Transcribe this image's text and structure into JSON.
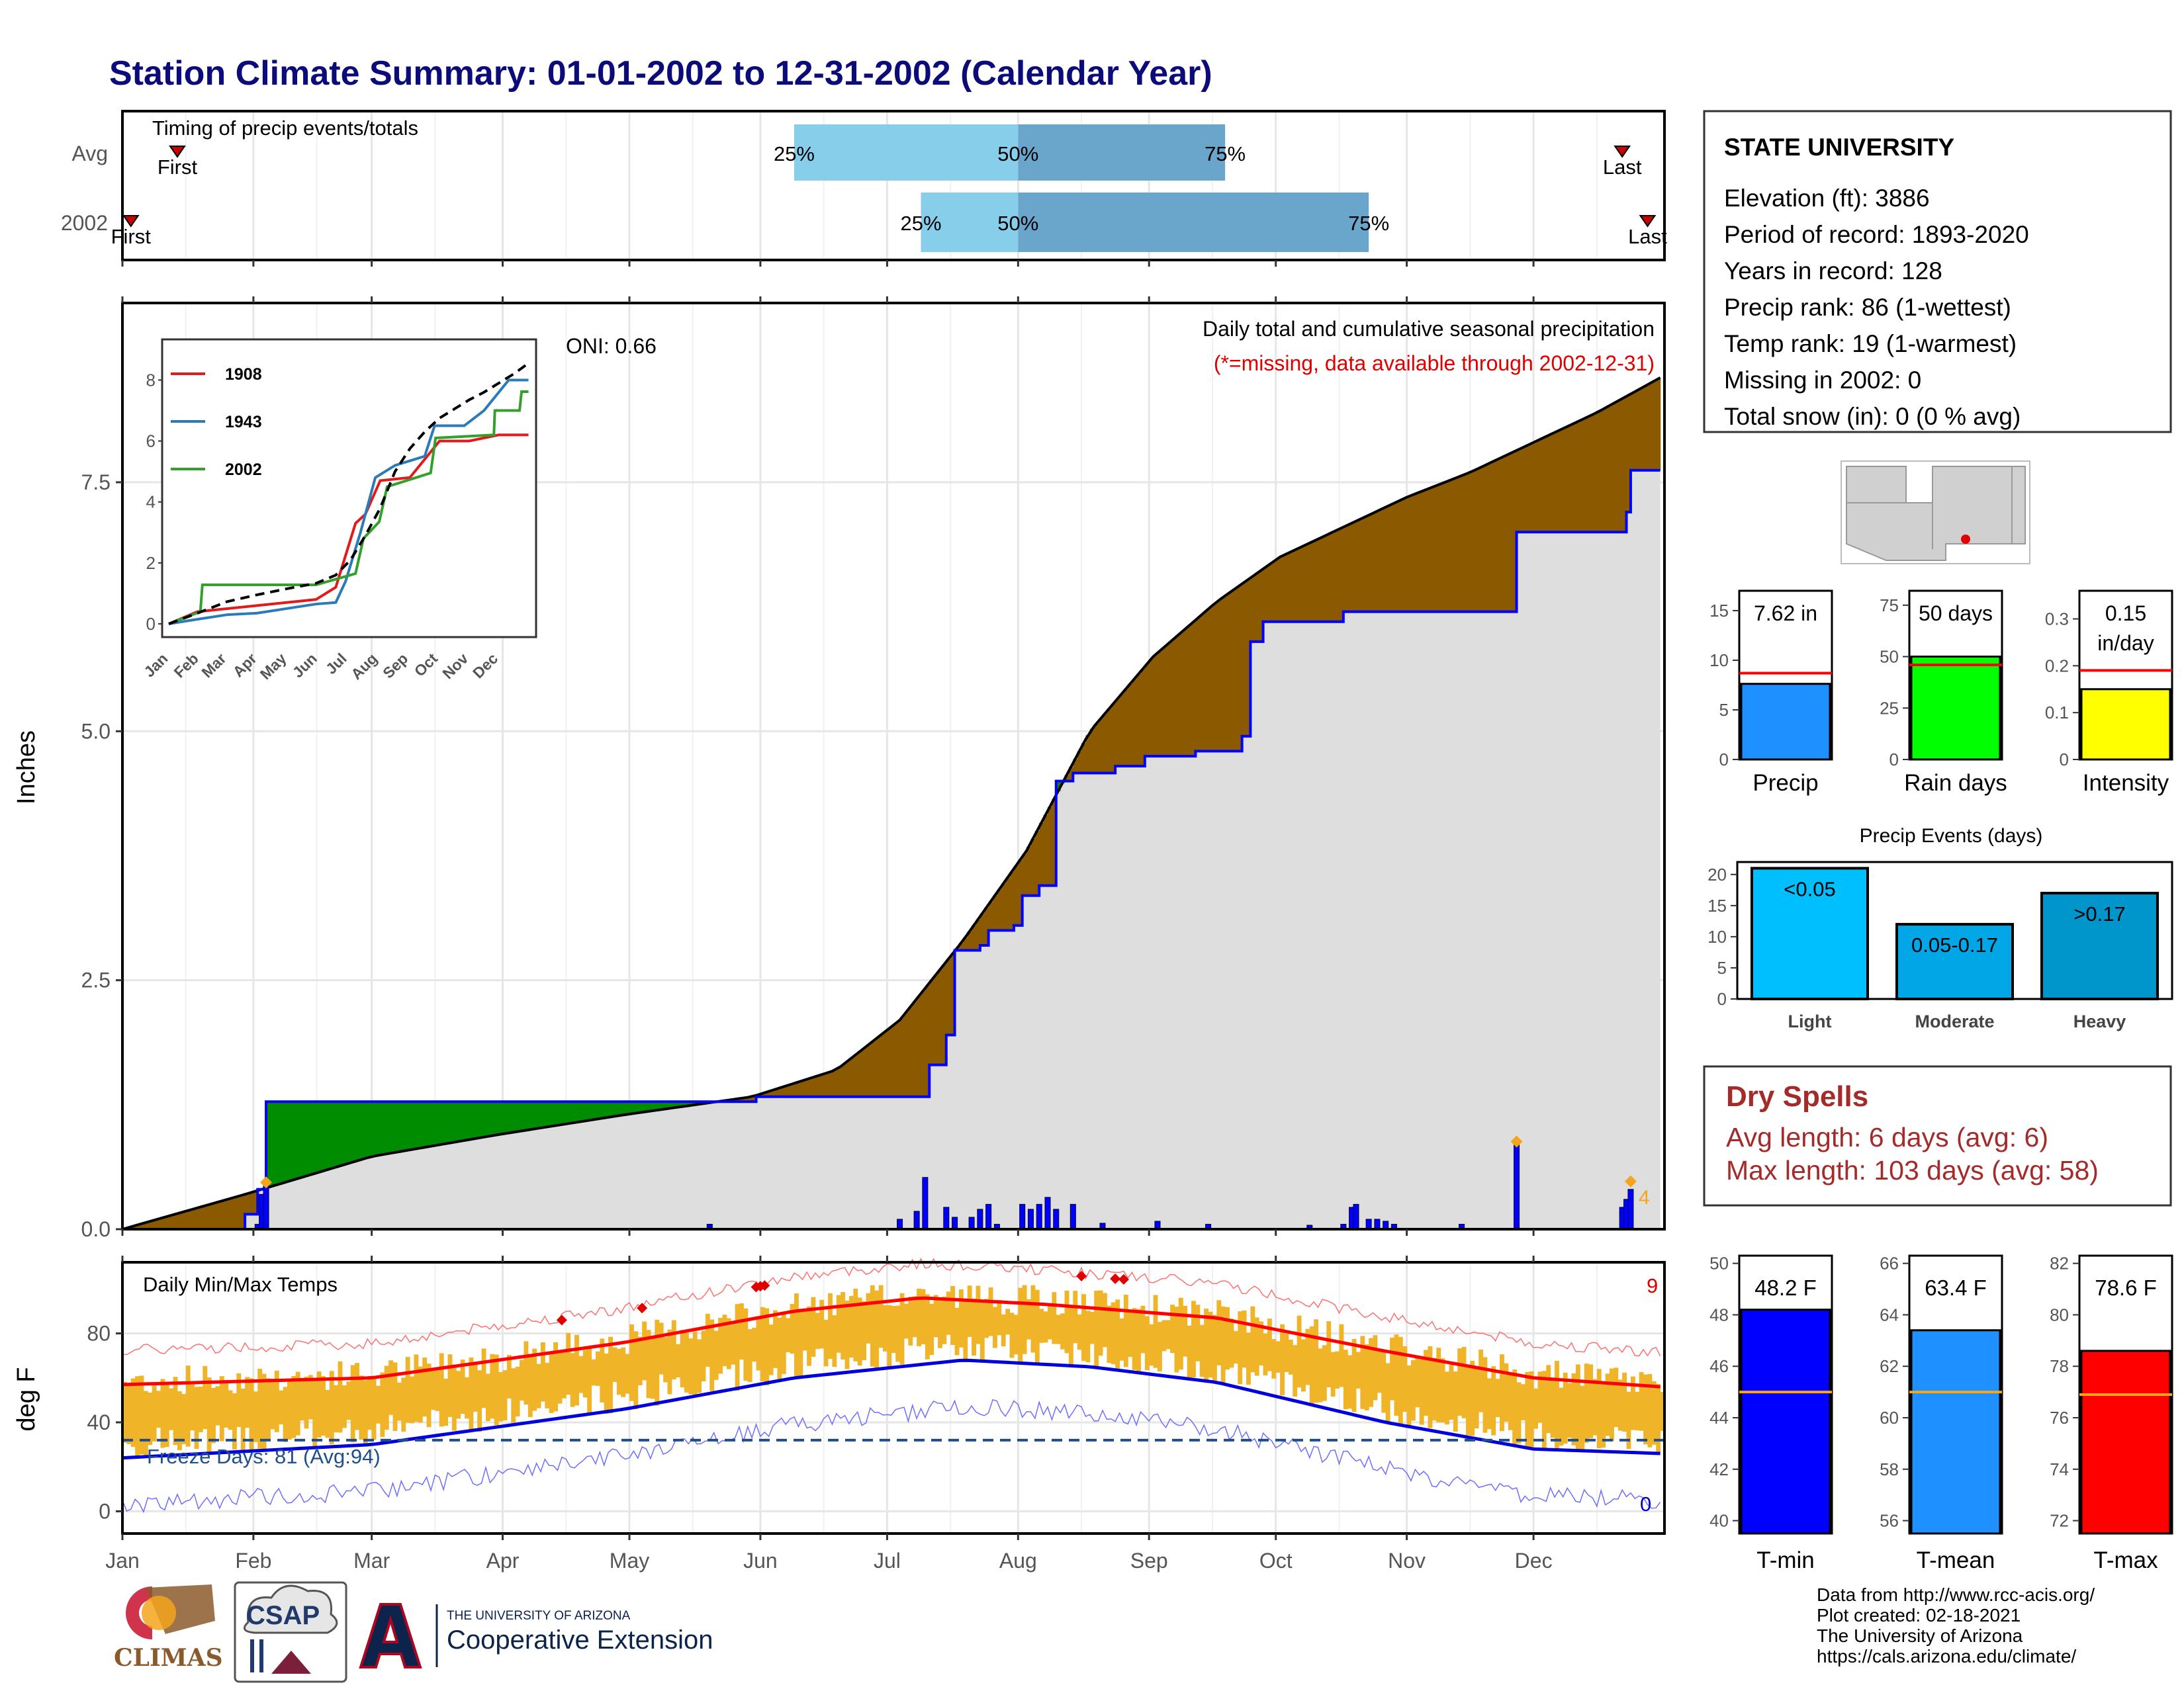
{
  "title": "Station Climate Summary: 01-01-2002 to 12-31-2002 (Calendar Year)",
  "timing": {
    "label": "Timing of precip events/totals",
    "rows": [
      {
        "name": "Avg",
        "first_label": "First",
        "last_label": "Last",
        "q25": "25%",
        "q50": "50%",
        "q75": "75%",
        "first_day": 14,
        "last_day": 356,
        "p25_day": 160,
        "p50_day": 213,
        "p75_day": 262
      },
      {
        "name": "2002",
        "first_label": "First",
        "last_label": "Last",
        "q25": "25%",
        "q50": "50%",
        "q75": "75%",
        "first_day": 3,
        "last_day": 362,
        "p25_day": 190,
        "p50_day": 213,
        "p75_day": 296
      }
    ]
  },
  "precip_panel": {
    "ylabel": "Inches",
    "title": "Daily total and cumulative seasonal precipitation",
    "subtitle": "(*=missing, data available through 2002-12-31)",
    "oni": "ONI: 0.66",
    "corner_count": "4",
    "inset": {
      "legend": [
        "1908",
        "1943",
        "2002"
      ],
      "legend_colors": [
        "#e31a1c",
        "#2b7bb9",
        "#33a02c"
      ],
      "yticks": [
        "0",
        "2",
        "4",
        "6",
        "8"
      ],
      "months": [
        "Jan",
        "Feb",
        "Mar",
        "Apr",
        "May",
        "Jun",
        "Jul",
        "Aug",
        "Sep",
        "Oct",
        "Nov",
        "Dec"
      ]
    }
  },
  "temp_panel": {
    "ylabel": "deg F",
    "title": "Daily Min/Max Temps",
    "freeze_text": "Freeze Days: 81 (Avg:94)",
    "record_high_count": "9",
    "record_low_count": "0",
    "yticks": [
      "0",
      "40",
      "80"
    ]
  },
  "months": [
    "Jan",
    "Feb",
    "Mar",
    "Apr",
    "May",
    "Jun",
    "Jul",
    "Aug",
    "Sep",
    "Oct",
    "Nov",
    "Dec"
  ],
  "station": {
    "name": "STATE UNIVERSITY",
    "lines": [
      "Elevation (ft): 3886",
      "Period of record: 1893-2020",
      "Years in record: 128",
      "Precip rank: 86 (1-wettest)",
      "Temp rank: 19 (1-warmest)",
      "Missing in 2002: 0",
      "Total snow (in): 0 (0 % avg)"
    ]
  },
  "summary_bars": [
    {
      "label": "Precip",
      "value_text": "7.62 in",
      "value": 7.62,
      "avg": 8.7,
      "ymax": 17,
      "yticks": [
        0,
        5,
        10,
        15
      ],
      "color": "#1e90ff"
    },
    {
      "label": "Rain days",
      "value_text": "50 days",
      "value": 50,
      "avg": 46,
      "ymax": 82,
      "yticks": [
        0,
        25,
        50,
        75
      ],
      "color": "#00ff00"
    },
    {
      "label": "Intensity",
      "value_text": "0.15 in/day",
      "value": 0.15,
      "avg": 0.19,
      "ymax": 0.36,
      "yticks": [
        0.0,
        0.1,
        0.2,
        0.3
      ],
      "color": "#ffff00"
    }
  ],
  "precip_events": {
    "title": "Precip Events (days)",
    "categories": [
      "Light",
      "Moderate",
      "Heavy"
    ],
    "labels": [
      "<0.05",
      "0.05-0.17",
      ">0.17"
    ],
    "values": [
      21,
      12,
      17
    ],
    "colors": [
      "#00bfff",
      "#00a6e6",
      "#0096cc"
    ],
    "yticks": [
      0,
      5,
      10,
      15,
      20
    ]
  },
  "dry_spells": {
    "title": "Dry Spells",
    "avg_line": "Avg length: 6 days (avg: 6)",
    "max_line": "Max length: 103 days (avg: 58)"
  },
  "temp_bars": [
    {
      "label": "T-min",
      "value_text": "48.2 F",
      "value": 48.2,
      "avg": 45.0,
      "ymin": 39.5,
      "ymax": 50.3,
      "yticks": [
        40,
        42,
        44,
        46,
        48,
        50
      ],
      "color": "#0000ff"
    },
    {
      "label": "T-mean",
      "value_text": "63.4 F",
      "value": 63.4,
      "avg": 61.0,
      "ymin": 55.5,
      "ymax": 66.3,
      "yticks": [
        56,
        58,
        60,
        62,
        64,
        66
      ],
      "color": "#1e90ff"
    },
    {
      "label": "T-max",
      "value_text": "78.6 F",
      "value": 78.6,
      "avg": 76.9,
      "ymin": 71.5,
      "ymax": 82.3,
      "yticks": [
        72,
        74,
        76,
        78,
        80,
        82
      ],
      "color": "#ff0000"
    }
  ],
  "footer": {
    "lines": [
      "Data from http://www.rcc-acis.org/",
      "Plot created: 02-18-2021",
      "The University of Arizona",
      "https://cals.arizona.edu/climate/"
    ],
    "logos": {
      "climas": "CLIMAS",
      "csap": "CSAP",
      "ua_top": "THE UNIVERSITY OF ARIZONA",
      "ua_bottom": "Cooperative Extension"
    }
  },
  "chart_data": [
    {
      "type": "line",
      "title": "Daily total and cumulative seasonal precipitation",
      "ylabel": "Inches",
      "ylim": [
        0,
        9.3
      ],
      "x": "day of year 2002",
      "series": [
        {
          "name": "2002",
          "points": [
            [
              1,
              0
            ],
            [
              30,
              0.15
            ],
            [
              33,
              0.4
            ],
            [
              35,
              1.28
            ],
            [
              150,
              1.28
            ],
            [
              151,
              1.33
            ],
            [
              190,
              1.33
            ],
            [
              192,
              1.65
            ],
            [
              196,
              1.95
            ],
            [
              198,
              2.8
            ],
            [
              204,
              2.85
            ],
            [
              206,
              3.0
            ],
            [
              212,
              3.05
            ],
            [
              214,
              3.35
            ],
            [
              218,
              3.45
            ],
            [
              222,
              4.5
            ],
            [
              226,
              4.58
            ],
            [
              236,
              4.65
            ],
            [
              243,
              4.75
            ],
            [
              255,
              4.8
            ],
            [
              266,
              4.95
            ],
            [
              268,
              5.9
            ],
            [
              271,
              6.1
            ],
            [
              290,
              6.2
            ],
            [
              330,
              6.2
            ],
            [
              331,
              7.0
            ],
            [
              356,
              7.0
            ],
            [
              357,
              7.2
            ],
            [
              358,
              7.62
            ],
            [
              365,
              7.62
            ]
          ]
        },
        {
          "points": [
            [
              1,
              0
            ],
            [
              30,
              0.35
            ],
            [
              60,
              0.73
            ],
            [
              90,
              0.95
            ],
            [
              120,
              1.15
            ],
            [
              150,
              1.33
            ],
            [
              170,
              1.6
            ],
            [
              185,
              2.1
            ],
            [
              200,
              2.9
            ],
            [
              215,
              3.8
            ],
            [
              230,
              5.0
            ],
            [
              245,
              5.75
            ],
            [
              260,
              6.3
            ],
            [
              275,
              6.75
            ],
            [
              290,
              7.05
            ],
            [
              305,
              7.35
            ],
            [
              320,
              7.6
            ],
            [
              335,
              7.9
            ],
            [
              350,
              8.2
            ],
            [
              365,
              8.55
            ]
          ]
        }
      ],
      "daily_precip": [
        [
          33,
          0.05
        ],
        [
          34,
          0.35
        ],
        [
          35,
          0.45
        ],
        [
          140,
          0.05
        ],
        [
          185,
          0.1
        ],
        [
          189,
          0.18
        ],
        [
          191,
          0.52
        ],
        [
          196,
          0.22
        ],
        [
          198,
          0.12
        ],
        [
          202,
          0.12
        ],
        [
          204,
          0.2
        ],
        [
          206,
          0.25
        ],
        [
          208,
          0.05
        ],
        [
          214,
          0.25
        ],
        [
          216,
          0.2
        ],
        [
          218,
          0.25
        ],
        [
          220,
          0.32
        ],
        [
          222,
          0.2
        ],
        [
          226,
          0.25
        ],
        [
          233,
          0.06
        ],
        [
          246,
          0.08
        ],
        [
          258,
          0.05
        ],
        [
          282,
          0.04
        ],
        [
          290,
          0.05
        ],
        [
          292,
          0.22
        ],
        [
          293,
          0.25
        ],
        [
          296,
          0.1
        ],
        [
          298,
          0.1
        ],
        [
          300,
          0.08
        ],
        [
          302,
          0.05
        ],
        [
          318,
          0.05
        ],
        [
          331,
          0.85
        ],
        [
          356,
          0.22
        ],
        [
          357,
          0.3
        ],
        [
          358,
          0.4
        ]
      ]
    },
    {
      "type": "line",
      "title": "Daily Min/Max Temps",
      "ylabel": "deg F",
      "ylim": [
        -10,
        112
      ],
      "series": [
        {
          "points": [
            [
              1,
              57
            ],
            [
              60,
              60
            ],
            [
              120,
              76
            ],
            [
              160,
              90
            ],
            [
              190,
              96
            ],
            [
              220,
              93
            ],
            [
              260,
              87
            ],
            [
              300,
              72
            ],
            [
              335,
              60
            ],
            [
              365,
              56
            ]
          ]
        },
        {
          "points": [
            [
              1,
              24
            ],
            [
              60,
              30
            ],
            [
              120,
              46
            ],
            [
              160,
              60
            ],
            [
              200,
              68
            ],
            [
              230,
              65
            ],
            [
              260,
              58
            ],
            [
              300,
              40
            ],
            [
              335,
              28
            ],
            [
              365,
              26
            ]
          ]
        }
      ],
      "freeze_threshold": 32
    }
  ]
}
